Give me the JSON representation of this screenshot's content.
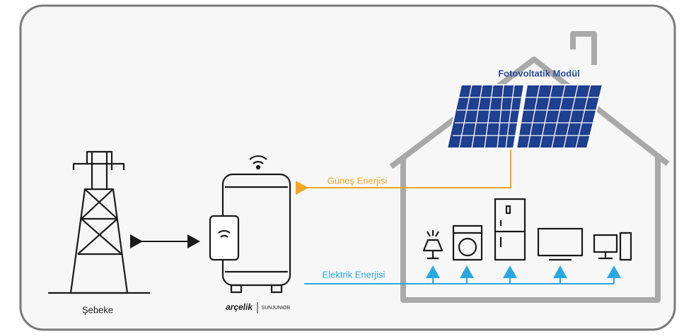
{
  "diagram": {
    "solar_module": "Fotovoltatik Modül",
    "solar_energy": "Güneş Enerjisi",
    "electric_energy": "Elektrik Enerjisi",
    "grid": "Şebeke",
    "brand": "arçelik",
    "product": "SUNJUNIOR"
  }
}
